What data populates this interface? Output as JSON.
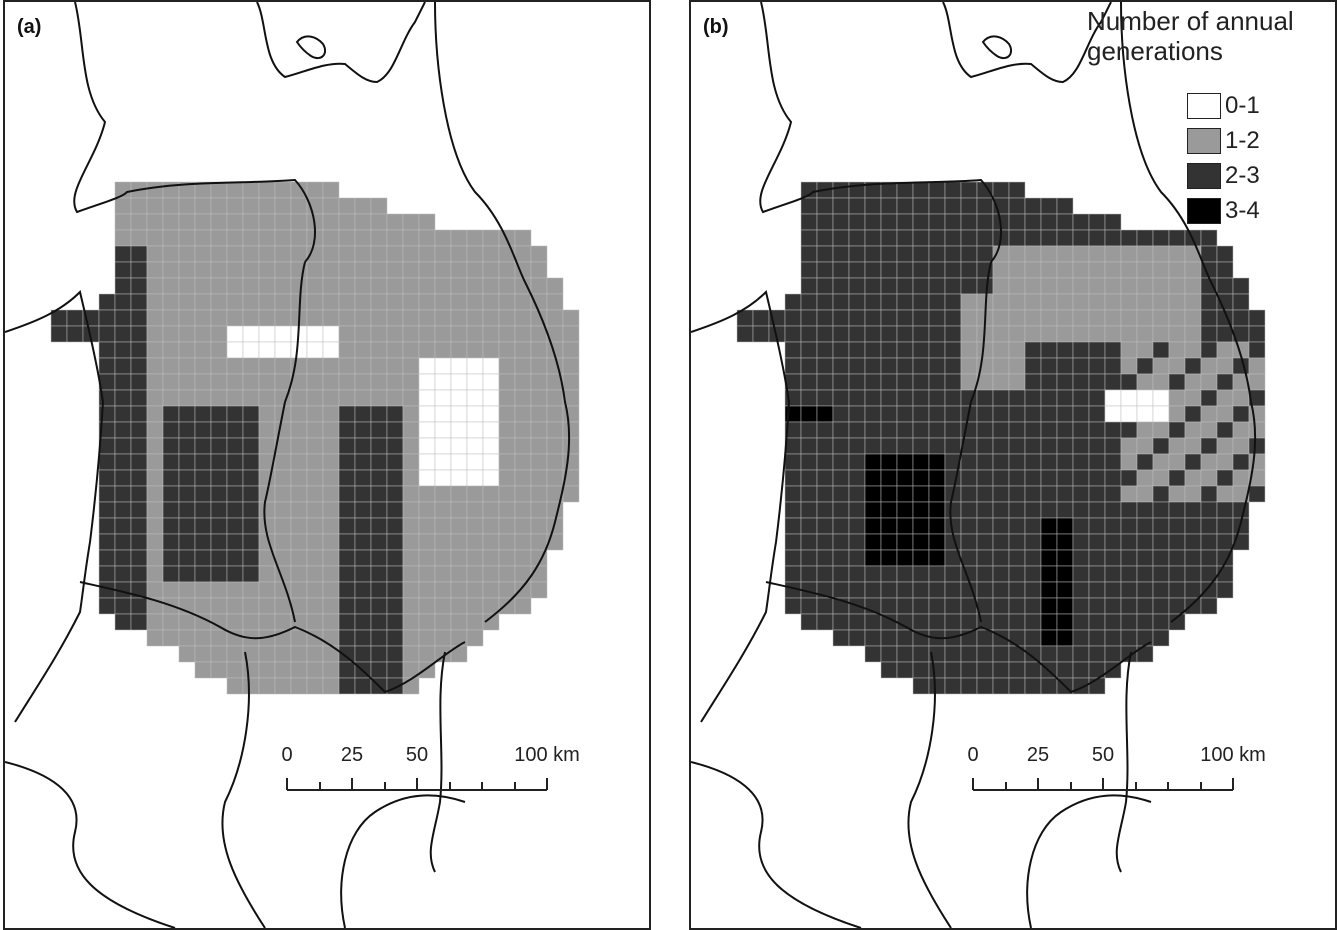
{
  "panels": [
    {
      "id": "a",
      "label": "(a)",
      "scalebar": {
        "labels": [
          "0",
          "25",
          "50",
          "100 km"
        ]
      }
    },
    {
      "id": "b",
      "label": "(b)",
      "scalebar": {
        "labels": [
          "0",
          "25",
          "50",
          "100 km"
        ]
      }
    }
  ],
  "legend": {
    "title_line1": "Number of annual",
    "title_line2": "generations",
    "items": [
      {
        "label": "0-1",
        "color": "#ffffff"
      },
      {
        "label": "1-2",
        "color": "#9a9a9a"
      },
      {
        "label": "2-3",
        "color": "#333333"
      },
      {
        "label": "3-4",
        "color": "#000000"
      }
    ]
  },
  "colors": {
    "border": "#111111",
    "gridline": "#bdbdbd",
    "background": "#ffffff"
  }
}
